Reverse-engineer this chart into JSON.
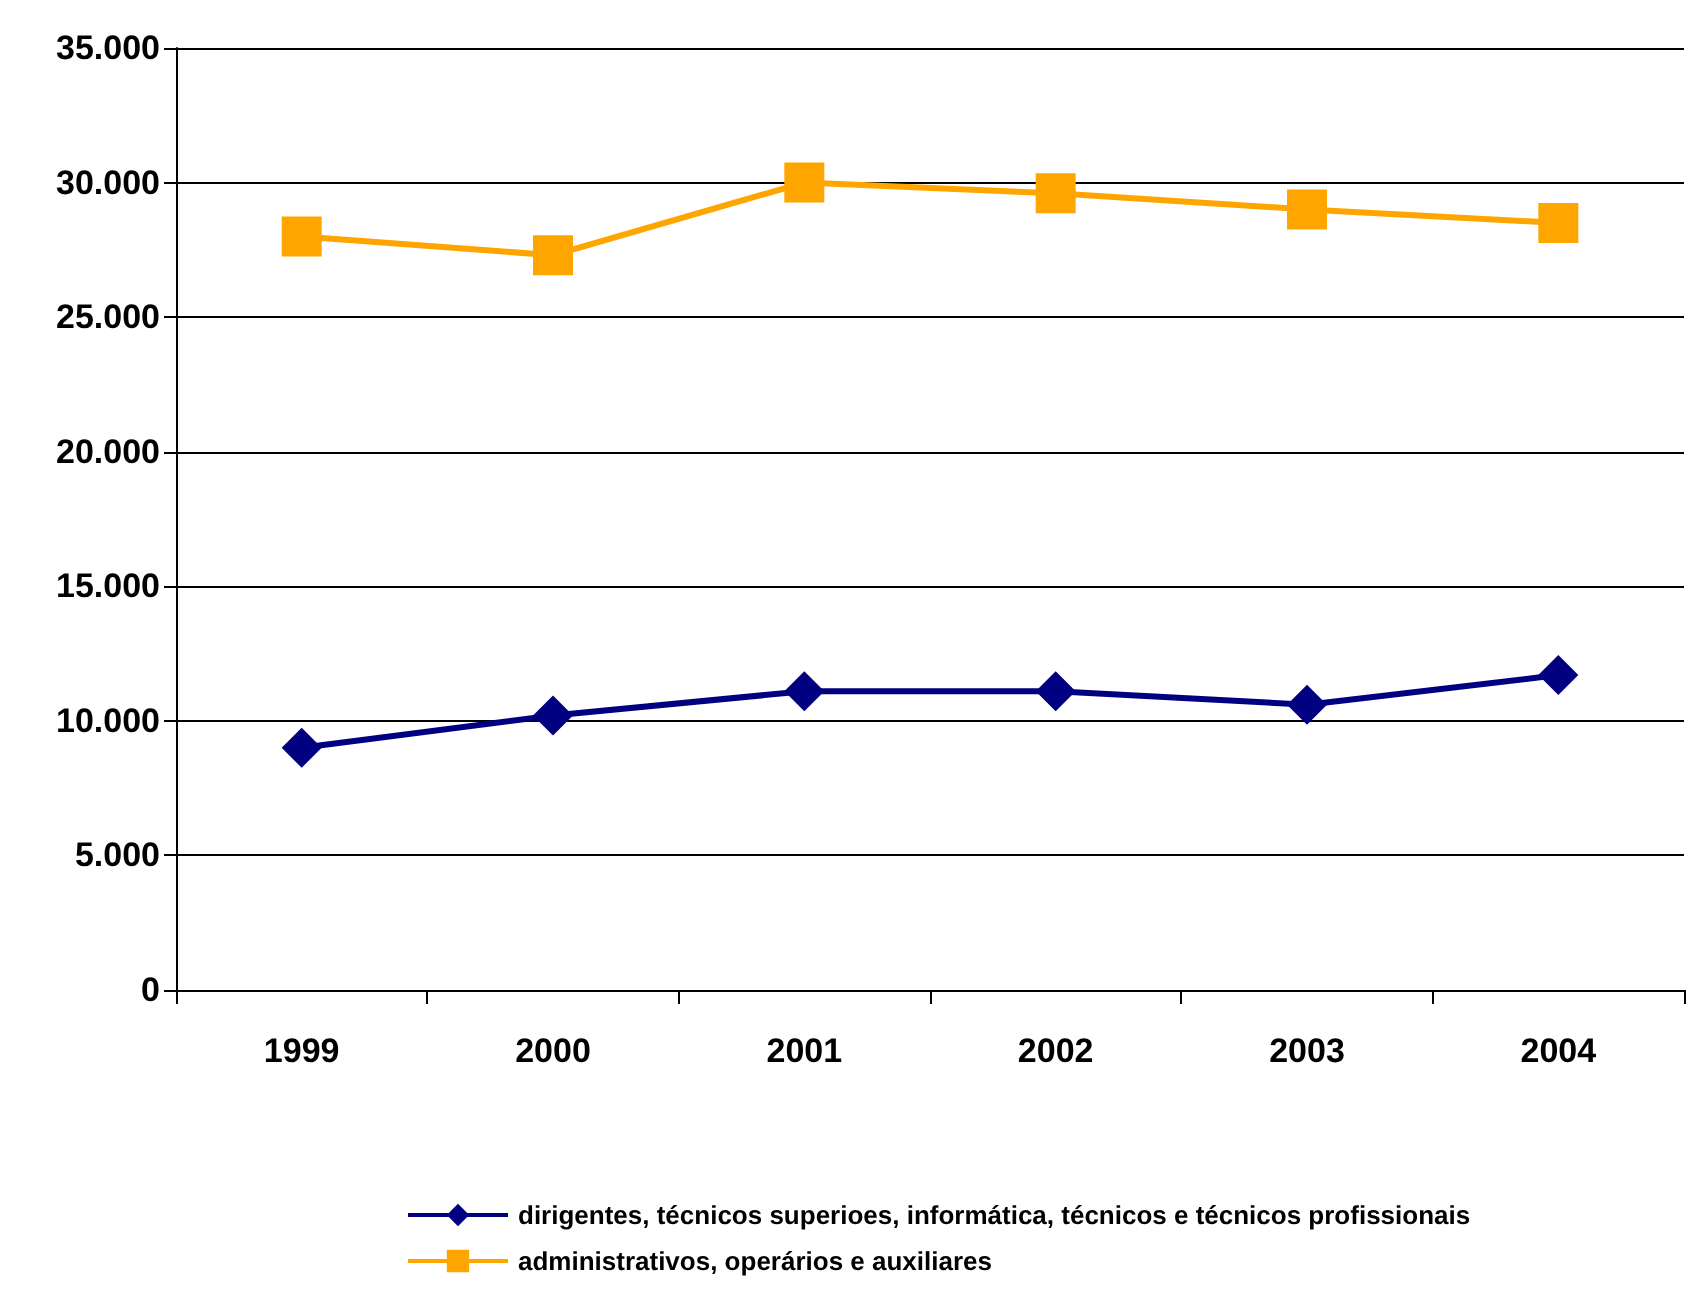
{
  "chart_data": {
    "type": "line",
    "categories": [
      "1999",
      "2000",
      "2001",
      "2002",
      "2003",
      "2004"
    ],
    "series": [
      {
        "name": "dirigentes, técnicos superioes, informática, técnicos e técnicos profissionais",
        "color": "#000080",
        "marker": "diamond",
        "values": [
          9000,
          10200,
          11100,
          11100,
          10600,
          11700
        ]
      },
      {
        "name": "administrativos, operários e auxiliares",
        "color": "#ffa500",
        "marker": "square",
        "values": [
          28000,
          27300,
          30000,
          29600,
          29000,
          28500
        ]
      }
    ],
    "ylim": [
      0,
      35000
    ],
    "yticks": [
      {
        "value": 0,
        "label": "0"
      },
      {
        "value": 5000,
        "label": "5.000"
      },
      {
        "value": 10000,
        "label": "10.000"
      },
      {
        "value": 15000,
        "label": "15.000"
      },
      {
        "value": 20000,
        "label": "20.000"
      },
      {
        "value": 25000,
        "label": "25.000"
      },
      {
        "value": 30000,
        "label": "30.000"
      },
      {
        "value": 35000,
        "label": "35.000"
      }
    ],
    "grid": "y",
    "legend": "bottom",
    "line_style": "solid"
  }
}
